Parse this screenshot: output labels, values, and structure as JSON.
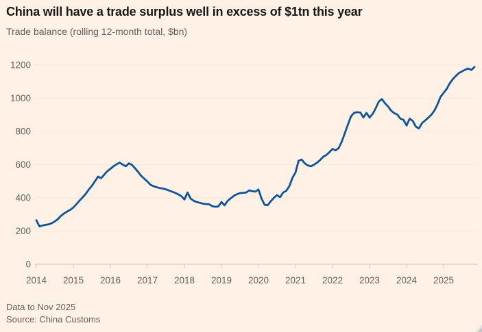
{
  "chart": {
    "title": "China will have a trade surplus well in excess of $1tn this year",
    "subtitle": "Trade balance (rolling 12-month total, $bn)",
    "footnote_line1": "Data to Nov 2025",
    "footnote_line2": "Source: China Customs"
  },
  "chart_data": {
    "type": "line",
    "title": "China will have a trade surplus well in excess of $1tn this year",
    "subtitle": "Trade balance (rolling 12-month total, $bn)",
    "xlabel": "",
    "ylabel": "$bn (rolling 12-month total)",
    "x_ticks": [
      "2014",
      "2015",
      "2016",
      "2017",
      "2018",
      "2019",
      "2020",
      "2021",
      "2022",
      "2023",
      "2024",
      "2025"
    ],
    "y_ticks": [
      0,
      200,
      400,
      600,
      800,
      1000,
      1200
    ],
    "ylim": [
      0,
      1200
    ],
    "grid": "horizontal",
    "legend": "none",
    "series": [
      {
        "name": "China trade balance, rolling 12-month total ($bn)",
        "frequency": "monthly",
        "start": "2014-01",
        "end": "2025-11",
        "values": [
          265,
          228,
          233,
          238,
          240,
          247,
          258,
          272,
          292,
          306,
          318,
          328,
          342,
          362,
          383,
          403,
          424,
          450,
          472,
          500,
          528,
          518,
          540,
          560,
          575,
          590,
          602,
          612,
          600,
          590,
          608,
          598,
          578,
          556,
          532,
          515,
          498,
          478,
          470,
          464,
          459,
          456,
          451,
          444,
          437,
          430,
          421,
          410,
          390,
          432,
          396,
          382,
          375,
          370,
          365,
          362,
          361,
          350,
          346,
          348,
          375,
          355,
          382,
          397,
          412,
          422,
          428,
          430,
          432,
          445,
          440,
          437,
          450,
          395,
          358,
          356,
          380,
          400,
          416,
          404,
          432,
          442,
          470,
          520,
          553,
          623,
          631,
          608,
          595,
          590,
          600,
          612,
          628,
          648,
          658,
          675,
          695,
          686,
          700,
          739,
          790,
          842,
          891,
          912,
          916,
          914,
          884,
          911,
          884,
          905,
          940,
          980,
          995,
          970,
          950,
          925,
          910,
          902,
          877,
          870,
          836,
          877,
          863,
          829,
          818,
          850,
          866,
          882,
          900,
          925,
          962,
          1008,
          1032,
          1056,
          1090,
          1115,
          1135,
          1152,
          1162,
          1172,
          1179,
          1170,
          1188
        ]
      }
    ],
    "colors": {
      "background": "#fff1e5",
      "line": "#0f5499",
      "grid": "#f7e8d9",
      "baseline": "#d5c4b5",
      "axis_text": "#66605c",
      "title_text": "#1a1817"
    }
  }
}
